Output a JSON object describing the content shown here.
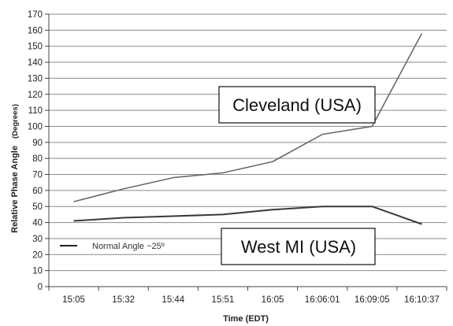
{
  "chart_data": {
    "type": "line",
    "categories": [
      "15:05",
      "15:32",
      "15:44",
      "15:51",
      "16:05",
      "16:06:01",
      "16:09:05",
      "16:10:37"
    ],
    "series": [
      {
        "name": "Cleveland (USA)",
        "values": [
          53,
          61,
          68,
          71,
          78,
          95,
          100,
          158
        ],
        "color": "#6a6a6a"
      },
      {
        "name": "West MI (USA)",
        "values": [
          41,
          43,
          44,
          45,
          48,
          50,
          50,
          39
        ],
        "color": "#3a3a3a"
      }
    ],
    "xlabel": "Time (EDT)",
    "ylabel": "Relative Phase Angle",
    "ylabel_unit": "(Degrees)",
    "ylim": [
      0,
      170
    ],
    "yticks": [
      0,
      10,
      20,
      30,
      40,
      50,
      60,
      70,
      80,
      90,
      100,
      110,
      120,
      130,
      140,
      150,
      160,
      170
    ],
    "grid": true,
    "legend": {
      "label": "Normal Angle ~25º",
      "placement": "bottom-left"
    },
    "annotations": [
      {
        "text": "Cleveland (USA)",
        "series": "Cleveland (USA)"
      },
      {
        "text": "West MI (USA)",
        "series": "West MI (USA)"
      }
    ]
  }
}
